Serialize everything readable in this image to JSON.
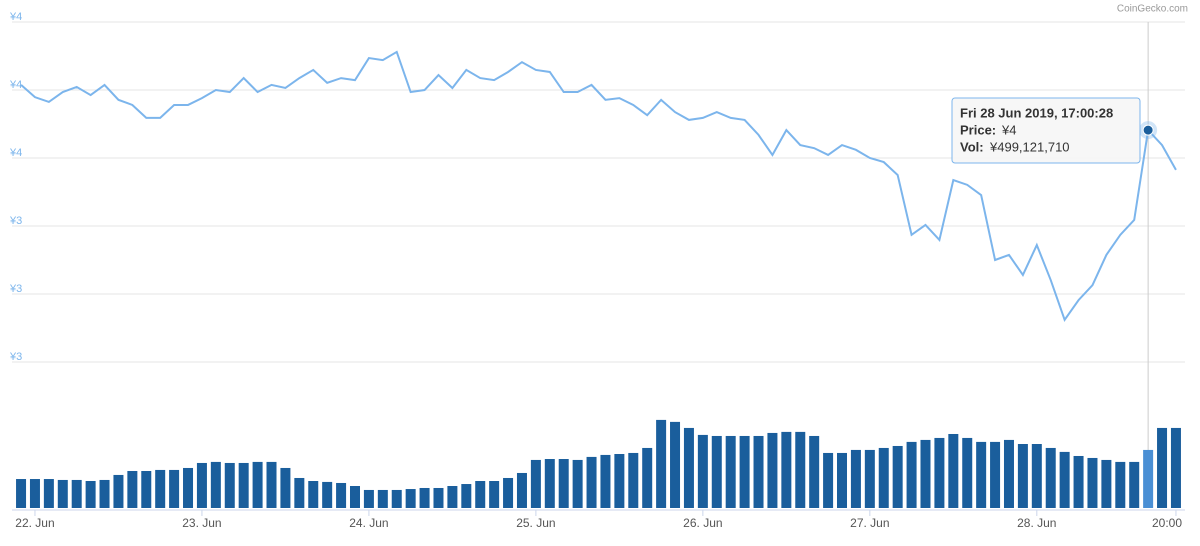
{
  "chart_data": {
    "type": "line",
    "credit": "CoinGecko.com",
    "x": [
      -2,
      0,
      2,
      4,
      6,
      8,
      10,
      12,
      14,
      16,
      18,
      20,
      22,
      24,
      26,
      28,
      30,
      32,
      34,
      36,
      38,
      40,
      42,
      44,
      46,
      48,
      50,
      52,
      54,
      56,
      58,
      60,
      62,
      64,
      66,
      68,
      70,
      72,
      74,
      76,
      78,
      80,
      82,
      84,
      86,
      88,
      90,
      92,
      94,
      96,
      98,
      100,
      102,
      104,
      106,
      108,
      110,
      112,
      114,
      116,
      118,
      120,
      122,
      124,
      126,
      128,
      130,
      132,
      134,
      136,
      138,
      140,
      142,
      144,
      146,
      148,
      150,
      152,
      154,
      156,
      158,
      160,
      162,
      164
    ],
    "xlim": [
      -3.3,
      165.3
    ],
    "xticks": [
      {
        "value": 0,
        "label": "22. Jun"
      },
      {
        "value": 24,
        "label": "23. Jun"
      },
      {
        "value": 48,
        "label": "24. Jun"
      },
      {
        "value": 72,
        "label": "25. Jun"
      },
      {
        "value": 96,
        "label": "26. Jun"
      },
      {
        "value": 120,
        "label": "27. Jun"
      },
      {
        "value": 144,
        "label": "28. Jun"
      },
      {
        "value": 164,
        "label": "20:00"
      }
    ],
    "ylim": [
      3.0,
      4.0
    ],
    "yticks": [
      {
        "value": 4.0,
        "label": "¥4"
      },
      {
        "value": 3.8,
        "label": "¥4"
      },
      {
        "value": 3.6,
        "label": "¥4"
      },
      {
        "value": 3.4,
        "label": "¥3"
      },
      {
        "value": 3.2,
        "label": "¥3"
      },
      {
        "value": 3.0,
        "label": "¥3"
      }
    ],
    "y2lim": [
      0,
      1100
    ],
    "grid": true,
    "series": [
      {
        "name": "Price",
        "color": "#7cb5ec",
        "values": [
          3.815,
          3.779,
          3.765,
          3.794,
          3.809,
          3.785,
          3.815,
          3.771,
          3.756,
          3.718,
          3.718,
          3.756,
          3.756,
          3.776,
          3.8,
          3.794,
          3.835,
          3.794,
          3.815,
          3.806,
          3.835,
          3.859,
          3.821,
          3.835,
          3.829,
          3.894,
          3.888,
          3.912,
          3.794,
          3.8,
          3.844,
          3.806,
          3.859,
          3.835,
          3.829,
          3.853,
          3.882,
          3.859,
          3.853,
          3.794,
          3.794,
          3.815,
          3.771,
          3.776,
          3.756,
          3.726,
          3.771,
          3.735,
          3.712,
          3.718,
          3.735,
          3.718,
          3.712,
          3.668,
          3.609,
          3.682,
          3.638,
          3.629,
          3.609,
          3.638,
          3.624,
          3.6,
          3.588,
          3.55,
          3.374,
          3.403,
          3.359,
          3.535,
          3.521,
          3.491,
          3.3,
          3.315,
          3.256,
          3.344,
          3.241,
          3.124,
          3.182,
          3.226,
          3.315,
          3.374,
          3.418,
          3.682,
          3.638,
          3.565
        ]
      },
      {
        "name": "Vol",
        "color": "#1a5e9c",
        "axis": "y2",
        "values": [
          249,
          249,
          249,
          241,
          241,
          232,
          241,
          284,
          318,
          318,
          327,
          327,
          344,
          387,
          396,
          387,
          387,
          396,
          396,
          344,
          258,
          232,
          224,
          215,
          189,
          155,
          155,
          155,
          163,
          172,
          172,
          189,
          206,
          232,
          232,
          258,
          301,
          413,
          421,
          421,
          413,
          439,
          456,
          464,
          473,
          516,
          757,
          740,
          688,
          628,
          619,
          619,
          619,
          619,
          645,
          654,
          654,
          619,
          473,
          473,
          499,
          499,
          516,
          533,
          568,
          585,
          602,
          636,
          602,
          568,
          568,
          585,
          550,
          550,
          516,
          482,
          447,
          430,
          413,
          396,
          396,
          499,
          688,
          688
        ]
      }
    ],
    "tooltip": {
      "date": "Fri 28 Jun 2019, 17:00:28",
      "price_label": "Price:",
      "price": "¥4",
      "vol_label": "Vol:",
      "vol": "¥499,121,710"
    }
  }
}
